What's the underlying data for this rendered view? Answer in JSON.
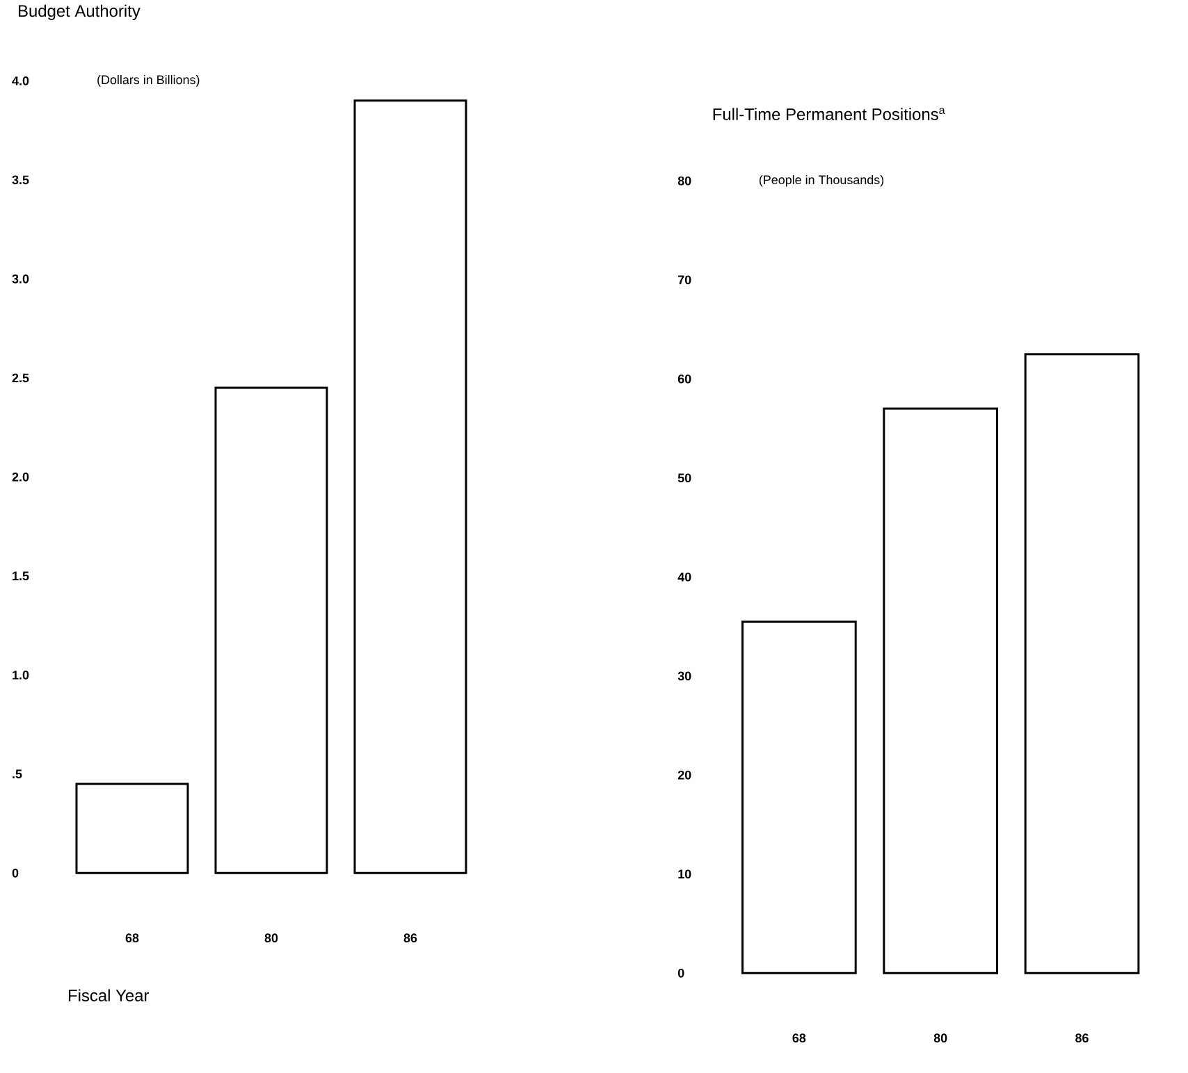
{
  "chart_data": [
    {
      "type": "bar",
      "title": "Budget Authority",
      "ylabel": "(Dollars in Billions)",
      "xlabel": "Fiscal Year",
      "categories": [
        "68",
        "80",
        "86"
      ],
      "values": [
        0.45,
        2.45,
        3.9
      ],
      "color": "#ffffff",
      "ylim": [
        0,
        4.0
      ],
      "yticks": [
        0,
        {
          "value": 0.5,
          "label": ".5"
        },
        {
          "value": 1.0,
          "label": "1.0"
        },
        1.5,
        {
          "value": 2.0,
          "label": "2.0"
        },
        2.5,
        {
          "value": 3.0,
          "label": "3.0"
        },
        3.5,
        {
          "value": 4.0,
          "label": "4.0"
        }
      ]
    },
    {
      "type": "bar",
      "title": "Full-Time Permanent Positions$^{a}$",
      "ylabel": "(People in Thousands)",
      "categories": [
        "68",
        "80",
        "86"
      ],
      "values": [
        35.5,
        57,
        62.5
      ],
      "color": "#ffffff",
      "ylim": [
        0,
        80
      ],
      "yticks": [
        0,
        10,
        20,
        30,
        40,
        50,
        60,
        70,
        80
      ]
    }
  ]
}
